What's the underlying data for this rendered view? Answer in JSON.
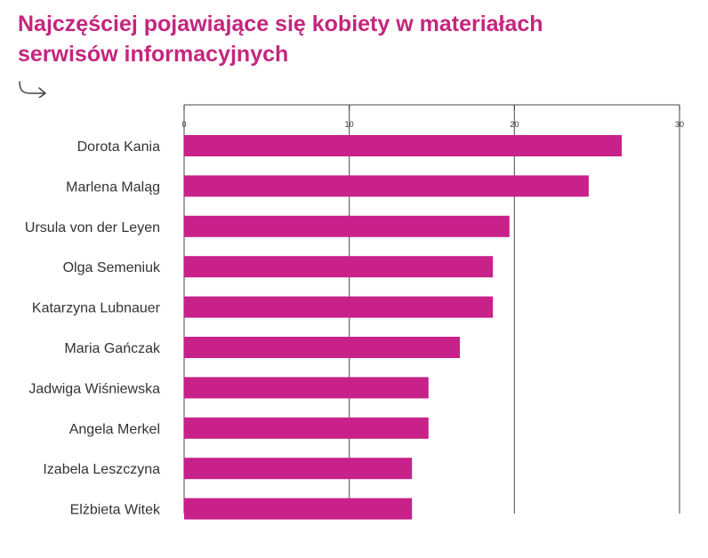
{
  "header": {
    "title_line1": "Najczęściej pojawiające się kobiety w materiałach",
    "title_line2": "serwisów informacyjnych"
  },
  "colors": {
    "bar": "#c8218a",
    "title": "#c4267f",
    "axis": "#444444",
    "grid": "#666666"
  },
  "icons": {
    "share": "share-arrow-icon"
  },
  "chart_data": {
    "type": "bar",
    "orientation": "horizontal",
    "categories": [
      "Dorota Kania",
      "Marlena Maląg",
      "Ursula von der Leyen",
      "Olga Semeniuk",
      "Katarzyna Lubnauer",
      "Maria Gańczak",
      "Jadwiga Wiśniewska",
      "Angela Merkel",
      "Izabela Leszczyna",
      "Elżbieta Witek"
    ],
    "values": [
      26.5,
      24.5,
      19.7,
      18.7,
      18.7,
      16.7,
      14.8,
      14.8,
      13.8,
      13.8
    ],
    "xticks": [
      0,
      10,
      20,
      30
    ],
    "xlim": [
      0,
      30
    ],
    "grid": true,
    "legend": "none"
  }
}
